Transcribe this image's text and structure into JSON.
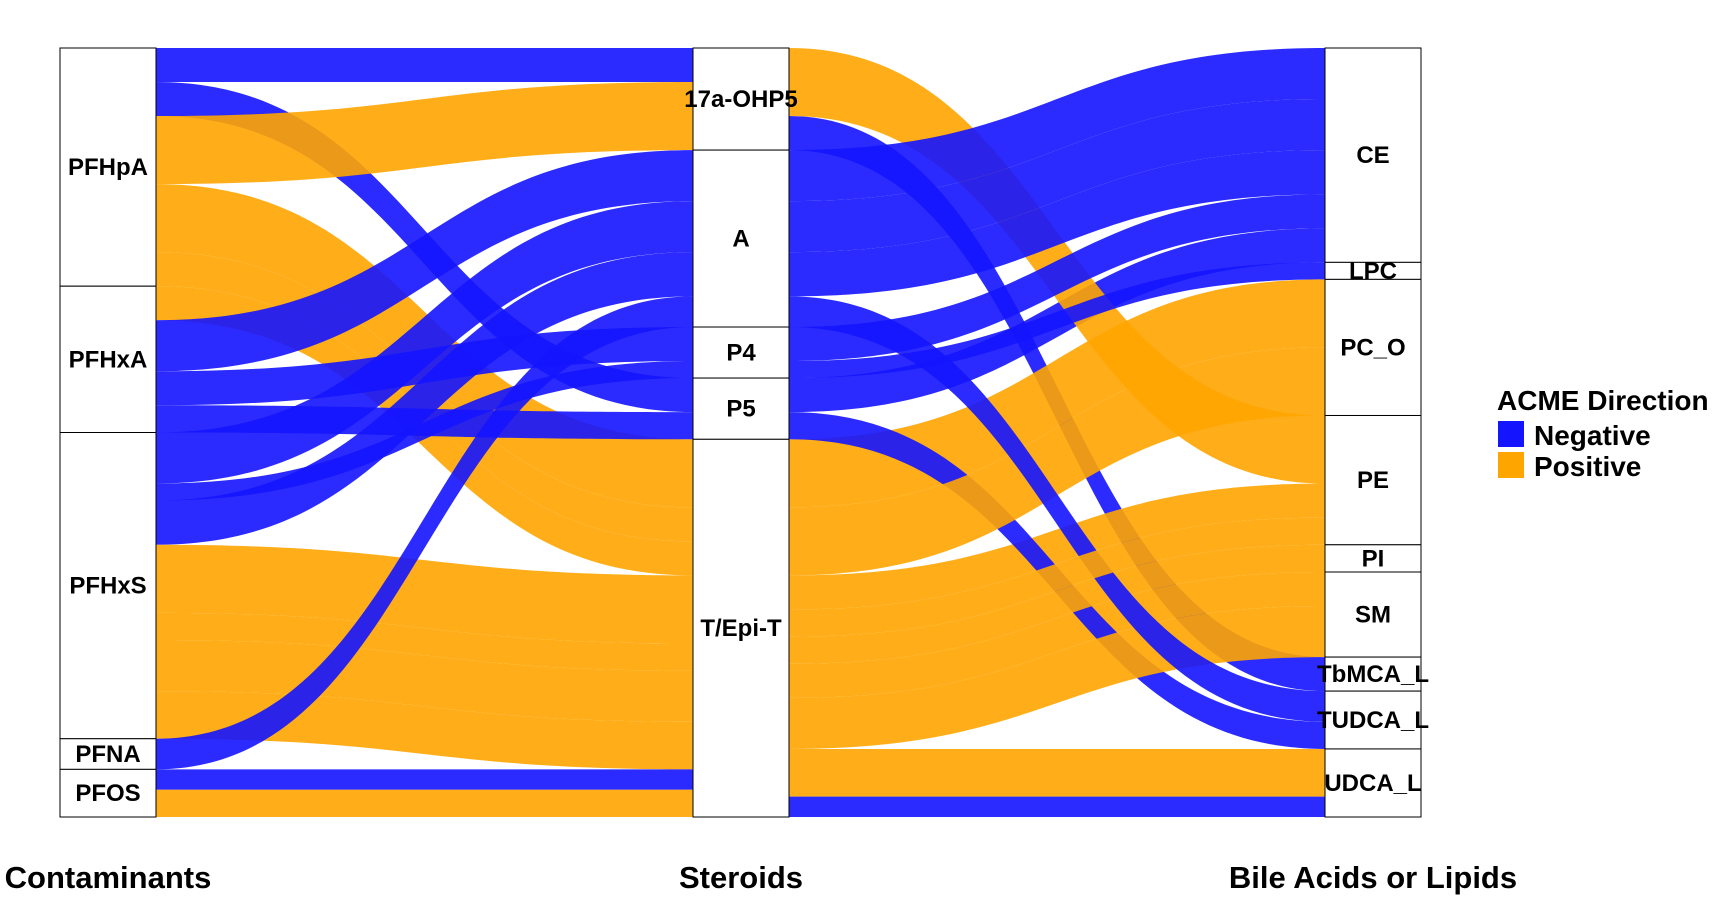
{
  "chart_data": {
    "type": "alluvial",
    "axes": [
      "Contaminants",
      "Steroids",
      "Bile Acids or Lipids"
    ],
    "strata": {
      "Contaminants": [
        "PFHpA",
        "PFHxA",
        "PFHxS",
        "PFNA",
        "PFOS"
      ],
      "Steroids": [
        "17a-OHP5",
        "A",
        "P4",
        "P5",
        "T/Epi-T"
      ],
      "Bile Acids or Lipids": [
        "CE",
        "LPC",
        "PC_O",
        "PE",
        "PI",
        "SM",
        "TbMCA_L",
        "TUDCA_L",
        "UDCA_L"
      ]
    },
    "legend": {
      "title": "ACME Direction",
      "position": "right",
      "items": [
        {
          "label": "Negative",
          "color": "#1414FF"
        },
        {
          "label": "Positive",
          "color": "#FFA500"
        }
      ]
    },
    "flows": [
      {
        "c": "PFHpA",
        "s": "17a-OHP5",
        "b": "TbMCA_L",
        "dir": "Negative",
        "w": 1.0
      },
      {
        "c": "PFHpA",
        "s": "P5",
        "b": "CE",
        "dir": "Negative",
        "w": 1.0
      },
      {
        "c": "PFHpA",
        "s": "17a-OHP5",
        "b": "PE",
        "dir": "Positive",
        "w": 2.0
      },
      {
        "c": "PFHpA",
        "s": "T/Epi-T",
        "b": "PC_O",
        "dir": "Positive",
        "w": 2.0
      },
      {
        "c": "PFHpA",
        "s": "T/Epi-T",
        "b": "SM",
        "dir": "Positive",
        "w": 1.0
      },
      {
        "c": "PFHxA",
        "s": "T/Epi-T",
        "b": "PE",
        "dir": "Positive",
        "w": 1.0
      },
      {
        "c": "PFHxA",
        "s": "A",
        "b": "CE",
        "dir": "Negative",
        "w": 1.5
      },
      {
        "c": "PFHxA",
        "s": "P4",
        "b": "CE",
        "dir": "Negative",
        "w": 1.0
      },
      {
        "c": "PFHxA",
        "s": "P5",
        "b": "TUDCA_L",
        "dir": "Negative",
        "w": 0.8
      },
      {
        "c": "PFHxS",
        "s": "A",
        "b": "CE",
        "dir": "Negative",
        "w": 1.5
      },
      {
        "c": "PFHxS",
        "s": "P4",
        "b": "LPC",
        "dir": "Negative",
        "w": 0.5
      },
      {
        "c": "PFHxS",
        "s": "A",
        "b": "CE",
        "dir": "Negative",
        "w": 1.3
      },
      {
        "c": "PFHxS",
        "s": "T/Epi-T",
        "b": "PC_O",
        "dir": "Positive",
        "w": 2.0
      },
      {
        "c": "PFHxS",
        "s": "T/Epi-T",
        "b": "PI",
        "dir": "Positive",
        "w": 0.8
      },
      {
        "c": "PFHxS",
        "s": "T/Epi-T",
        "b": "SM",
        "dir": "Positive",
        "w": 1.5
      },
      {
        "c": "PFHxS",
        "s": "T/Epi-T",
        "b": "UDCA_L",
        "dir": "Positive",
        "w": 1.4
      },
      {
        "c": "PFNA",
        "s": "A",
        "b": "TUDCA_L",
        "dir": "Negative",
        "w": 0.9
      },
      {
        "c": "PFOS",
        "s": "T/Epi-T",
        "b": "UDCA_L",
        "dir": "Negative",
        "w": 0.6
      },
      {
        "c": "PFOS",
        "s": "T/Epi-T",
        "b": "PE",
        "dir": "Positive",
        "w": 0.8
      }
    ]
  }
}
